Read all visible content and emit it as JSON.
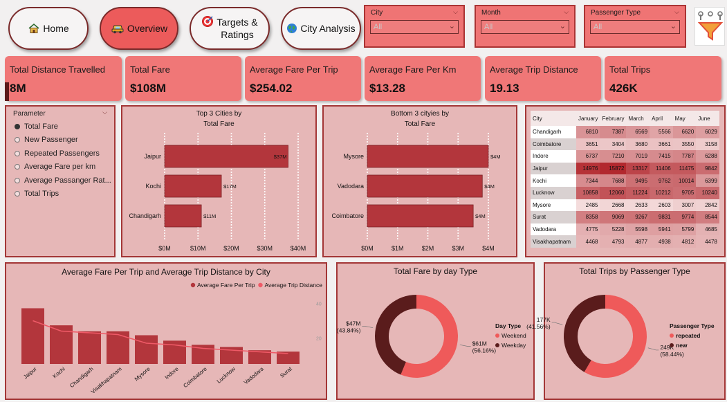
{
  "nav": [
    {
      "label": "Home",
      "icon": "home-icon",
      "active": false
    },
    {
      "label": "Overview",
      "icon": "car-icon",
      "active": true
    },
    {
      "label_lines": [
        "Targets &",
        "Ratings"
      ],
      "icon": "target-icon",
      "active": false
    },
    {
      "label": "City Analysis",
      "icon": "globe-icon",
      "active": false
    }
  ],
  "filters": [
    {
      "label": "City",
      "value": "All"
    },
    {
      "label": "Month",
      "value": "All"
    },
    {
      "label": "Passenger Type",
      "value": "All"
    }
  ],
  "filter_icon": "filter-funnel-icon",
  "kpis": [
    {
      "title": "Total Distance Travelled",
      "value": "8M"
    },
    {
      "title": "Total Fare",
      "value": "$108M"
    },
    {
      "title": "Average Fare Per Trip",
      "value": "$254.02"
    },
    {
      "title": "Average Fare Per Km",
      "value": "$13.28"
    },
    {
      "title": "Average Trip Distance",
      "value": "19.13"
    },
    {
      "title": "Total Trips",
      "value": "426K"
    }
  ],
  "parameter": {
    "title": "Parameter",
    "options": [
      {
        "label": "Total Fare",
        "selected": true
      },
      {
        "label": "New Passenger",
        "selected": false
      },
      {
        "label": "Repeated Passengers",
        "selected": false
      },
      {
        "label": "Average Fare per km",
        "selected": false
      },
      {
        "label": "Average Passanger Rat...",
        "selected": false
      },
      {
        "label": "Total Trips",
        "selected": false
      }
    ]
  },
  "matrix": {
    "corner": "City",
    "months": [
      "January",
      "February",
      "March",
      "April",
      "May",
      "June"
    ],
    "rows": [
      {
        "city": "Chandigarh",
        "values": [
          6810,
          7387,
          6569,
          5566,
          6620,
          6029
        ]
      },
      {
        "city": "Coimbatore",
        "values": [
          3651,
          3404,
          3680,
          3661,
          3550,
          3158
        ]
      },
      {
        "city": "Indore",
        "values": [
          6737,
          7210,
          7019,
          7415,
          7787,
          6288
        ]
      },
      {
        "city": "Jaipur",
        "values": [
          14976,
          15872,
          13317,
          11406,
          11475,
          9842
        ]
      },
      {
        "city": "Kochi",
        "values": [
          7344,
          7688,
          9495,
          9762,
          10014,
          6399
        ]
      },
      {
        "city": "Lucknow",
        "values": [
          10858,
          12060,
          11224,
          10212,
          9705,
          10240
        ]
      },
      {
        "city": "Mysore",
        "values": [
          2485,
          2668,
          2633,
          2603,
          3007,
          2842
        ]
      },
      {
        "city": "Surat",
        "values": [
          8358,
          9069,
          9267,
          9831,
          9774,
          8544
        ]
      },
      {
        "city": "Vadodara",
        "values": [
          4775,
          5228,
          5598,
          5941,
          5799,
          4685
        ]
      },
      {
        "city": "Visakhapatnam",
        "values": [
          4468,
          4793,
          4877,
          4938,
          4812,
          4478
        ]
      }
    ]
  },
  "chart_data": [
    {
      "type": "bar",
      "orientation": "horizontal",
      "title_lines": [
        "Top 3 Cities by",
        "Total Fare"
      ],
      "categories": [
        "Jaipur",
        "Kochi",
        "Chandigarh"
      ],
      "values": [
        37,
        17,
        11
      ],
      "value_labels": [
        "$37M",
        "$17M",
        "$11M"
      ],
      "xticks": [
        "$0M",
        "$10M",
        "$20M",
        "$30M",
        "$40M"
      ],
      "xlim": [
        0,
        40
      ],
      "bar_color": "#b3363c"
    },
    {
      "type": "bar",
      "orientation": "horizontal",
      "title_lines": [
        "Bottom 3 cityies by",
        "Total Fare"
      ],
      "categories": [
        "Mysore",
        "Vadodara",
        "Coimbatore"
      ],
      "values": [
        4.0,
        3.8,
        3.5
      ],
      "value_labels": [
        "$4M",
        "$4M",
        "$4M"
      ],
      "xticks": [
        "$0M",
        "$1M",
        "$2M",
        "$3M",
        "$4M"
      ],
      "xlim": [
        0,
        4
      ],
      "bar_color": "#b3363c"
    },
    {
      "type": "bar",
      "combo": "bar+line",
      "title": "Average Fare Per Trip and Average Trip Distance by City",
      "categories": [
        "Jaipur",
        "Kochi",
        "Chandigarh",
        "Visakhapatnam",
        "Mysore",
        "Indore",
        "Coimbatore",
        "Lucknow",
        "Vadodara",
        "Surat"
      ],
      "series": [
        {
          "name": "Average Fare Per Trip",
          "kind": "bar",
          "color": "#b3363c",
          "values": [
            483,
            335,
            283,
            283,
            249,
            202,
            166,
            147,
            119,
            107
          ]
        },
        {
          "name": "Average Trip Distance",
          "kind": "line",
          "color": "#ef5a67",
          "values": [
            30,
            24,
            23,
            22,
            17,
            16,
            14,
            13,
            12,
            11
          ]
        }
      ],
      "bar_ylim": [
        0,
        600
      ],
      "line_ylim": [
        5,
        45
      ],
      "right_axis_ticks": [
        40,
        20
      ],
      "legend": "top-right"
    },
    {
      "type": "pie",
      "donut": true,
      "title": "Total Fare by day Type",
      "legend_title": "Day Type",
      "slices": [
        {
          "name": "Weekend",
          "value": 56.16,
          "label": "$61M",
          "pct": "(56.16%)",
          "color": "#ef5a5a"
        },
        {
          "name": "Weekday",
          "value": 43.84,
          "label": "$47M",
          "pct": "(43.84%)",
          "color": "#5a1c1c"
        }
      ]
    },
    {
      "type": "pie",
      "donut": true,
      "title": "Total Trips by Passenger Type",
      "legend_title": "Passenger Type",
      "slices": [
        {
          "name": "repeated",
          "value": 58.44,
          "label": "249K",
          "pct": "(58.44%)",
          "color": "#ef5a5a"
        },
        {
          "name": "new",
          "value": 41.56,
          "label": "177K",
          "pct": "(41.56%)",
          "color": "#5a1c1c"
        }
      ]
    }
  ]
}
